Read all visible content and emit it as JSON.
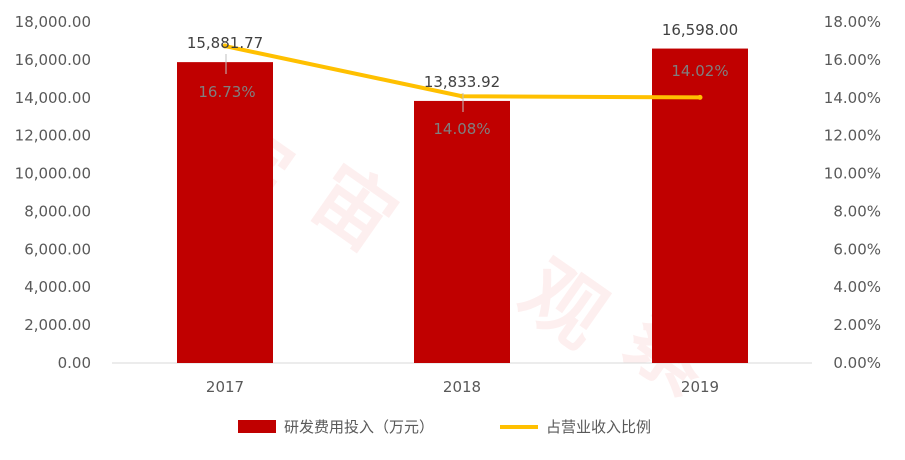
{
  "chart_data": {
    "type": "bar+line",
    "categories": [
      "2017",
      "2018",
      "2019"
    ],
    "series": [
      {
        "name": "研发费用投入（万元）",
        "type": "bar",
        "axis": "left",
        "color": "#c00000",
        "values": [
          15881.77,
          13833.92,
          16598.0
        ],
        "labels": [
          "15,881.77",
          "13,833.92",
          "16,598.00"
        ]
      },
      {
        "name": "占营业收入比例",
        "type": "line",
        "axis": "right",
        "color": "#ffc000",
        "values": [
          0.1673,
          0.1408,
          0.1402
        ],
        "labels": [
          "16.73%",
          "14.08%",
          "14.02%"
        ]
      }
    ],
    "y_left": {
      "ylim": [
        0,
        18000
      ],
      "ticks": [
        "0.00",
        "2,000.00",
        "4,000.00",
        "6,000.00",
        "8,000.00",
        "10,000.00",
        "12,000.00",
        "14,000.00",
        "16,000.00",
        "18,000.00"
      ]
    },
    "y_right": {
      "ylim": [
        0,
        0.18
      ],
      "ticks": [
        "0.00%",
        "2.00%",
        "4.00%",
        "6.00%",
        "8.00%",
        "10.00%",
        "12.00%",
        "14.00%",
        "16.00%",
        "18.00%"
      ]
    },
    "grid": false,
    "legend_position": "bottom"
  },
  "watermark": "宇宙城观察"
}
